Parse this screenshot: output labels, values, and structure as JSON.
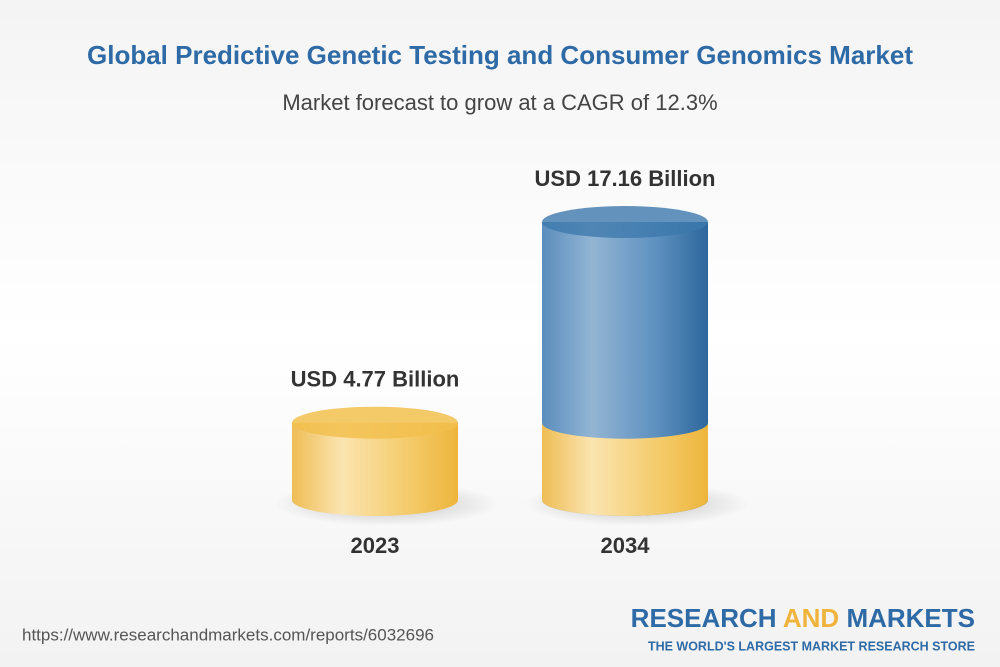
{
  "chart_data": {
    "type": "cylinder",
    "title": "Global Predictive Genetic Testing and Consumer Genomics Market",
    "subtitle": "Market forecast to grow at a CAGR of 12.3%",
    "categories": [
      "2023",
      "2034"
    ],
    "values": [
      4.77,
      17.16
    ],
    "value_labels": [
      "USD 4.77 Billion",
      "USD 17.16 Billion"
    ],
    "base_color": "#f2c04e",
    "growth_color": "#3d79ad"
  },
  "footer": {
    "url": "https://www.researchandmarkets.com/reports/6032696",
    "logo_words": [
      "RESEARCH",
      "AND",
      "MARKETS"
    ],
    "tagline": "THE WORLD'S LARGEST MARKET RESEARCH STORE"
  }
}
